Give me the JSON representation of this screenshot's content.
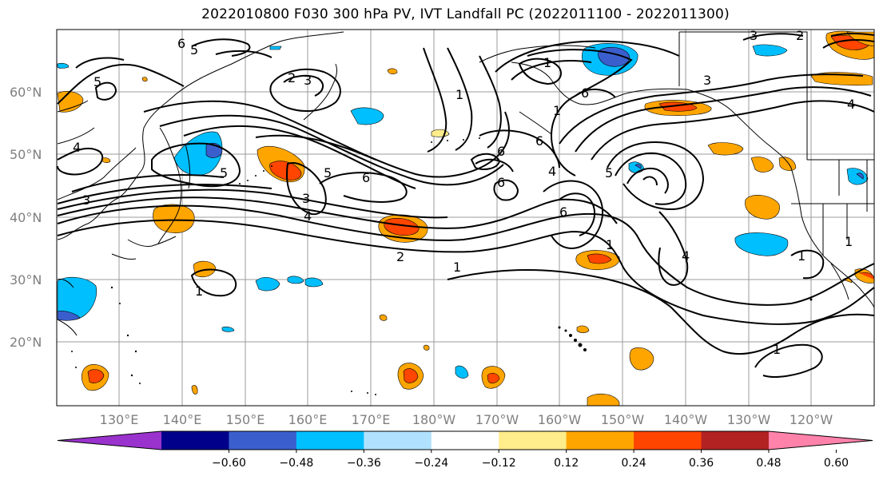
{
  "title": "2022010800 F030 300 hPa PV, IVT Landfall PC (2022011100 - 2022011300)",
  "lat_labels": [
    "60°N",
    "50°N",
    "40°N",
    "30°N",
    "20°N"
  ],
  "lon_labels": [
    "130°E",
    "140°E",
    "150°E",
    "160°E",
    "170°E",
    "180°W",
    "170°W",
    "160°W",
    "150°W",
    "140°W",
    "130°W",
    "120°W"
  ],
  "colorbar": {
    "tick_labels": [
      "−0.60",
      "−0.48",
      "−0.36",
      "−0.24",
      "−0.12",
      "0.12",
      "0.24",
      "0.36",
      "0.48",
      "0.60"
    ],
    "colors": [
      "#9a32cd",
      "#00008b",
      "#3a5fcd",
      "#00bfff",
      "#b0e2ff",
      "#ffffff",
      "#ffec8b",
      "#ffa500",
      "#ff4500",
      "#b22222",
      "#ff82ab"
    ]
  },
  "contour_labels": [
    "6",
    "5",
    "2",
    "3",
    "5",
    "1",
    "4",
    "3",
    "5",
    "6",
    "5",
    "3",
    "4",
    "6",
    "6",
    "6",
    "4",
    "6",
    "5",
    "6",
    "1",
    "2",
    "1",
    "1",
    "4",
    "1",
    "1",
    "3",
    "4",
    "1",
    "1",
    "2",
    "1",
    "3"
  ]
}
